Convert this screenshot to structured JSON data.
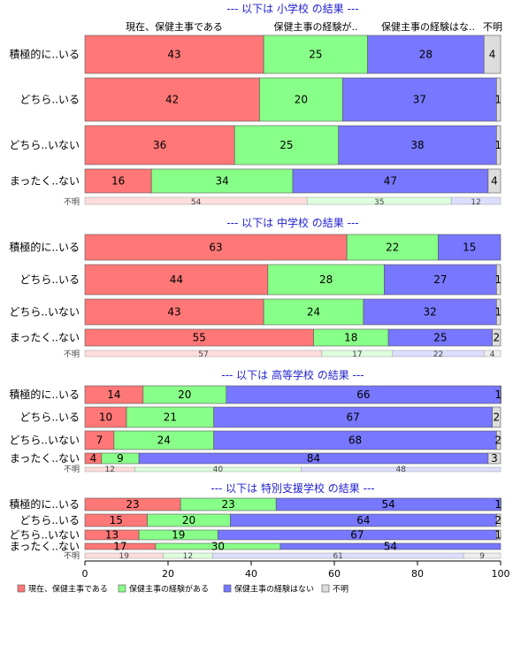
{
  "chart_data": {
    "type": "bar",
    "orientation": "horizontal",
    "stacked": true,
    "xlim": [
      0,
      100
    ],
    "xticks": [
      0,
      20,
      40,
      60,
      80,
      100
    ],
    "column_headers": [
      "現在、保健主事である",
      "保健主事の経験が..",
      "保健主事の経験はな..",
      "不明"
    ],
    "legend": [
      {
        "label": "現在、保健主事である",
        "color": "#ff7777"
      },
      {
        "label": "保健主事の経験がある",
        "color": "#88ff88"
      },
      {
        "label": "保健主事の経験はない",
        "color": "#7777ff"
      },
      {
        "label": "不明",
        "color": "#dddddd"
      }
    ],
    "colors": [
      "#ff7777",
      "#88ff88",
      "#7777ff",
      "#dddddd"
    ],
    "footer_colors": [
      "#ffdddd",
      "#ddffdd",
      "#ddddff",
      "#eeeeee"
    ],
    "footer_label": "不明",
    "panels": [
      {
        "title": "--- 以下は 小学校 の結果 ---",
        "categories": [
          "積極的に..いる",
          "どちら..いる",
          "どちら..いない",
          "まったく..ない"
        ],
        "values": [
          [
            43,
            25,
            28,
            4
          ],
          [
            42,
            20,
            37,
            1
          ],
          [
            36,
            25,
            38,
            1
          ],
          [
            16,
            34,
            47,
            4
          ]
        ],
        "footer": [
          54,
          35,
          12
        ]
      },
      {
        "title": "--- 以下は 中学校 の結果 ---",
        "categories": [
          "積極的に..いる",
          "どちら..いる",
          "どちら..いない",
          "まったく..ない"
        ],
        "values": [
          [
            63,
            22,
            15,
            0
          ],
          [
            44,
            28,
            27,
            1
          ],
          [
            43,
            24,
            32,
            1
          ],
          [
            55,
            18,
            25,
            2
          ]
        ],
        "footer": [
          57,
          17,
          22,
          4
        ]
      },
      {
        "title": "--- 以下は 高等学校 の結果 ---",
        "categories": [
          "積極的に..いる",
          "どちら..いる",
          "どちら..いない",
          "まったく..ない"
        ],
        "values": [
          [
            14,
            20,
            66,
            1
          ],
          [
            10,
            21,
            67,
            2
          ],
          [
            7,
            24,
            68,
            2
          ],
          [
            4,
            9,
            84,
            3
          ]
        ],
        "footer": [
          12,
          40,
          48
        ]
      },
      {
        "title": "--- 以下は 特別支援学校 の結果 ---",
        "categories": [
          "積極的に..いる",
          "どちら..いる",
          "どちら..いない",
          "まったく..ない"
        ],
        "values": [
          [
            23,
            23,
            54,
            1
          ],
          [
            15,
            20,
            64,
            2
          ],
          [
            13,
            19,
            67,
            1
          ],
          [
            17,
            30,
            54,
            0
          ]
        ],
        "footer": [
          19,
          12,
          61,
          9
        ]
      }
    ]
  }
}
